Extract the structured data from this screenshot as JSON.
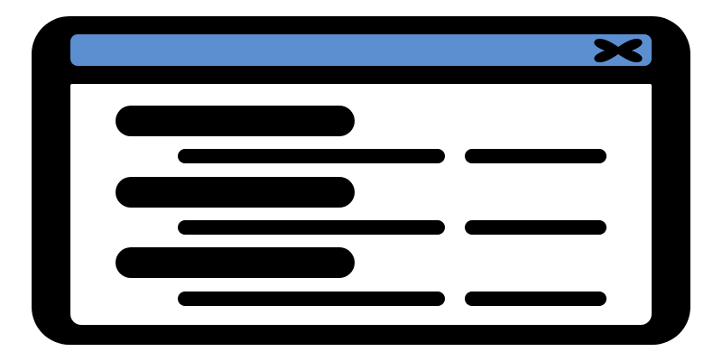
{
  "window": {
    "title_bar_color": "#5b8fcf",
    "frame_color": "#000000",
    "content_color": "#ffffff",
    "close_icon": "close-x-icon"
  },
  "content": {
    "sections": [
      {
        "heading": "placeholder-bar",
        "rows": [
          {
            "label": "placeholder-line",
            "value": "placeholder-line"
          }
        ]
      },
      {
        "heading": "placeholder-bar",
        "rows": [
          {
            "label": "placeholder-line",
            "value": "placeholder-line"
          }
        ]
      },
      {
        "heading": "placeholder-bar",
        "rows": [
          {
            "label": "placeholder-line",
            "value": "placeholder-line"
          }
        ]
      }
    ]
  }
}
